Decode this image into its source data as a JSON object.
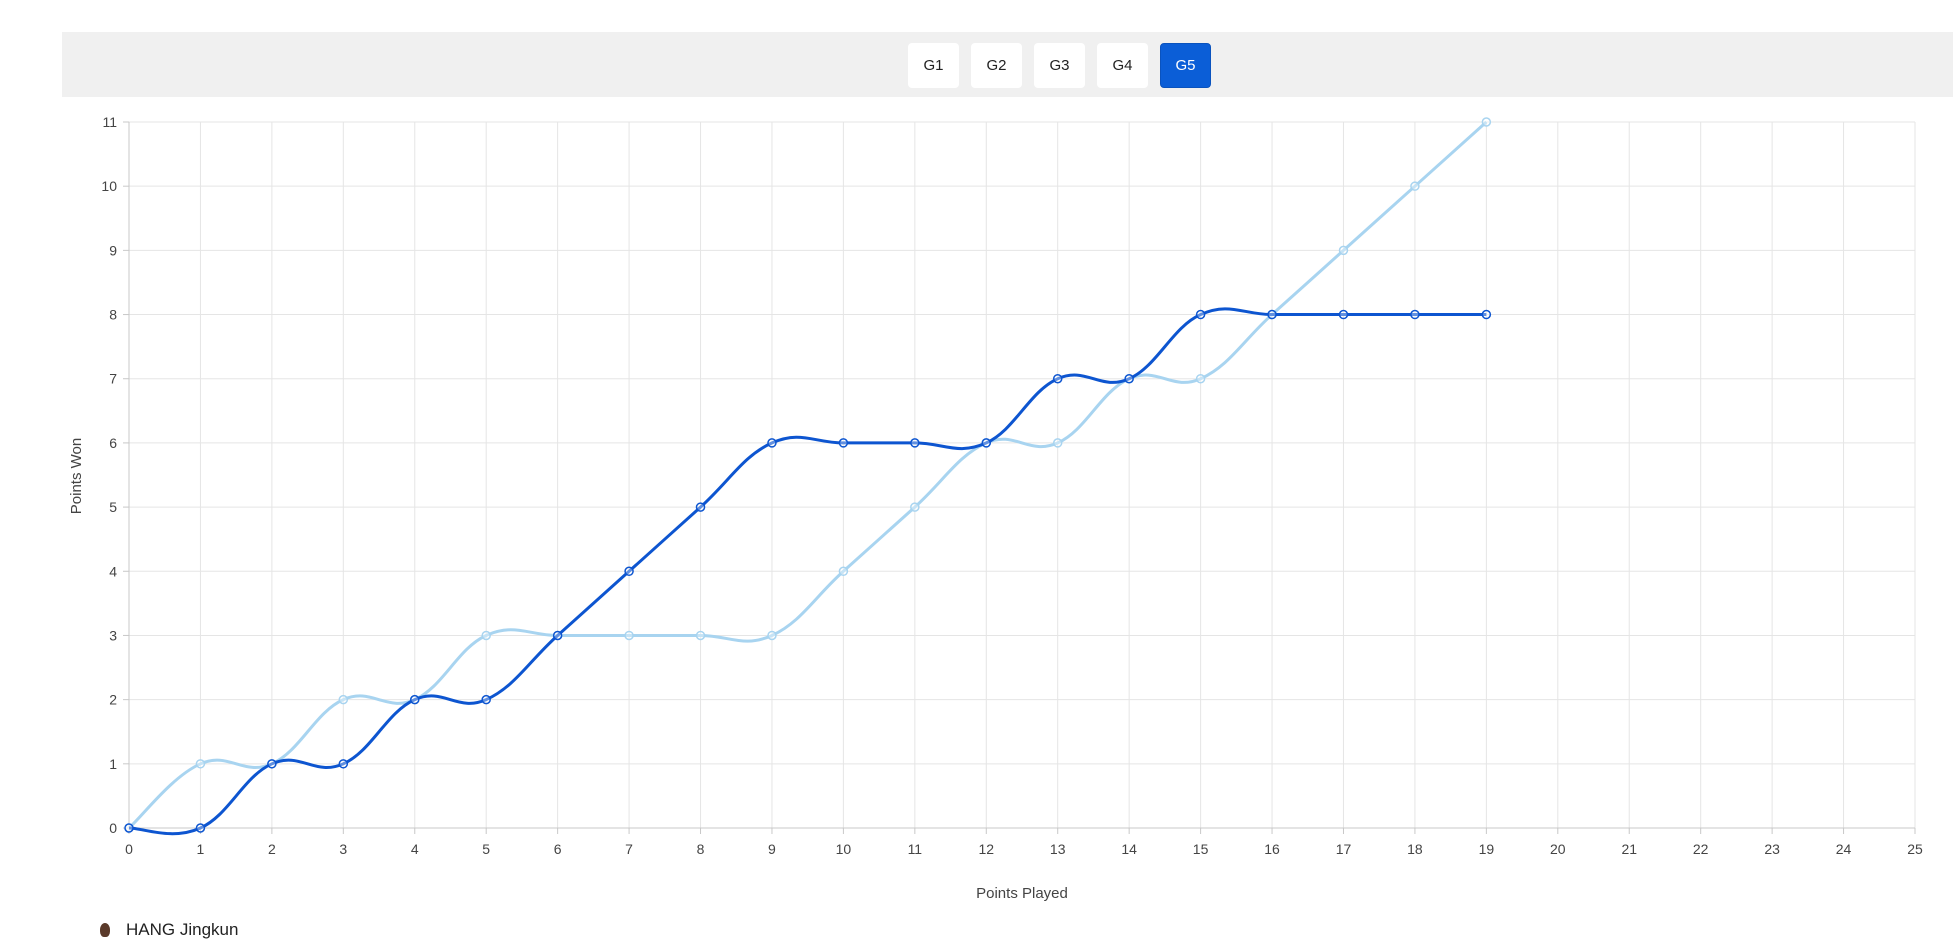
{
  "tabs": [
    {
      "label": "G1",
      "active": false
    },
    {
      "label": "G2",
      "active": false
    },
    {
      "label": "G3",
      "active": false
    },
    {
      "label": "G4",
      "active": false
    },
    {
      "label": "G5",
      "active": true
    }
  ],
  "colors": {
    "accent": "#0b5ed7",
    "series_dark": "#0d55d0",
    "series_light": "#a8d4f0",
    "grid": "#e5e5e5"
  },
  "legend": {
    "player_name": "HANG Jingkun",
    "icon": "avatar-icon"
  },
  "chart_data": {
    "type": "line",
    "xlabel": "Points Played",
    "ylabel": "Points Won",
    "xlim": [
      0,
      25
    ],
    "ylim": [
      0,
      11
    ],
    "x_ticks": [
      0,
      1,
      2,
      3,
      4,
      5,
      6,
      7,
      8,
      9,
      10,
      11,
      12,
      13,
      14,
      15,
      16,
      17,
      18,
      19,
      20,
      21,
      22,
      23,
      24,
      25
    ],
    "y_ticks": [
      0,
      1,
      2,
      3,
      4,
      5,
      6,
      7,
      8,
      9,
      10,
      11
    ],
    "grid": true,
    "smooth": true,
    "series": [
      {
        "color": "#a8d4f0",
        "x": [
          0,
          1,
          2,
          3,
          4,
          5,
          6,
          7,
          8,
          9,
          10,
          11,
          12,
          13,
          14,
          15,
          16,
          17,
          18,
          19
        ],
        "values": [
          0,
          1,
          1,
          2,
          2,
          3,
          3,
          3,
          3,
          3,
          4,
          5,
          6,
          6,
          7,
          7,
          8,
          9,
          10,
          11
        ]
      },
      {
        "color": "#0d55d0",
        "x": [
          0,
          1,
          2,
          3,
          4,
          5,
          6,
          7,
          8,
          9,
          10,
          11,
          12,
          13,
          14,
          15,
          16,
          17,
          18,
          19
        ],
        "values": [
          0,
          0,
          1,
          1,
          2,
          2,
          3,
          4,
          5,
          6,
          6,
          6,
          6,
          7,
          7,
          8,
          8,
          8,
          8,
          8
        ]
      }
    ]
  }
}
